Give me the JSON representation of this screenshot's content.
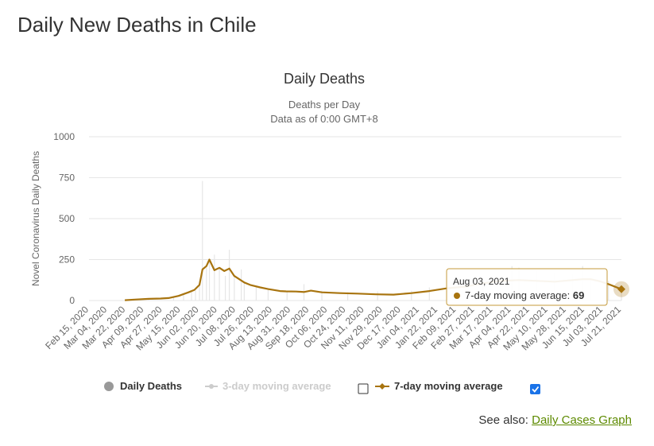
{
  "page": {
    "title": "Daily New Deaths in Chile",
    "see_also_prefix": "See also: ",
    "see_also_link": "Daily Cases Graph"
  },
  "colors": {
    "avg7": "#a8740f",
    "avg3_disabled": "#cccccc",
    "bars": "#e6e6e6",
    "grid": "#e6e6e6",
    "legend_dot": "#999999",
    "link": "#5d8a00"
  },
  "tooltip": {
    "date": "Aug 03, 2021",
    "series": "7-day moving average",
    "value": "69"
  },
  "legend": {
    "items": [
      {
        "label": "Daily Deaths",
        "checkbox": false,
        "enabled": true
      },
      {
        "label": "3-day moving average",
        "checkbox": true,
        "checked": false,
        "enabled": false
      },
      {
        "label": "7-day moving average",
        "checkbox": true,
        "checked": true,
        "enabled": true
      }
    ]
  },
  "chart_data": {
    "type": "line",
    "title": "Daily Deaths",
    "subtitle_lines": [
      "Deaths per Day",
      "Data as of 0:00 GMT+8"
    ],
    "ylabel": "Novel Coronavirus Daily Deaths",
    "ylim": [
      0,
      1000
    ],
    "yticks": [
      0,
      250,
      500,
      750,
      1000
    ],
    "x_range": [
      "2020-02-15",
      "2021-08-03"
    ],
    "xtick_labels": [
      "Feb 15, 2020",
      "Mar 04, 2020",
      "Mar 22, 2020",
      "Apr 09, 2020",
      "Apr 27, 2020",
      "May 15, 2020",
      "Jun 02, 2020",
      "Jun 20, 2020",
      "Jul 08, 2020",
      "Jul 26, 2020",
      "Aug 13, 2020",
      "Aug 31, 2020",
      "Sep 18, 2020",
      "Oct 06, 2020",
      "Oct 24, 2020",
      "Nov 11, 2020",
      "Nov 29, 2020",
      "Dec 17, 2020",
      "Jan 04, 2021",
      "Jan 22, 2021",
      "Feb 09, 2021",
      "Feb 27, 2021",
      "Mar 17, 2021",
      "Apr 04, 2021",
      "Apr 22, 2021",
      "May 10, 2021",
      "May 28, 2021",
      "Jun 15, 2021",
      "Jul 03, 2021",
      "Jul 21, 2021"
    ],
    "legend_position": "bottom",
    "grid": true,
    "series": [
      {
        "name": "Daily Deaths",
        "type": "column",
        "x": [
          "2020-03-22",
          "2020-04-15",
          "2020-05-10",
          "2020-05-20",
          "2020-05-28",
          "2020-06-01",
          "2020-06-05",
          "2020-06-08",
          "2020-06-12",
          "2020-06-15",
          "2020-06-20",
          "2020-06-25",
          "2020-07-01",
          "2020-07-05",
          "2020-07-10",
          "2020-07-17",
          "2020-07-20",
          "2020-08-01",
          "2020-08-13",
          "2020-09-01",
          "2020-09-18",
          "2020-10-06",
          "2020-11-01",
          "2020-12-01",
          "2021-01-04",
          "2021-01-22",
          "2021-02-09",
          "2021-02-27",
          "2021-03-17",
          "2021-04-04",
          "2021-04-15",
          "2021-04-22",
          "2021-05-10",
          "2021-05-28",
          "2021-06-15",
          "2021-06-25",
          "2021-07-03",
          "2021-07-21",
          "2021-08-03"
        ],
        "values": [
          2,
          8,
          20,
          45,
          55,
          60,
          120,
          730,
          200,
          250,
          280,
          200,
          150,
          310,
          150,
          190,
          110,
          90,
          75,
          55,
          100,
          60,
          50,
          55,
          60,
          80,
          95,
          110,
          130,
          150,
          210,
          200,
          180,
          170,
          160,
          210,
          140,
          120,
          50
        ]
      },
      {
        "name": "3-day moving average",
        "type": "line",
        "visible": false,
        "x": [],
        "values": []
      },
      {
        "name": "7-day moving average",
        "type": "line",
        "x": [
          "2020-03-22",
          "2020-04-01",
          "2020-04-15",
          "2020-04-27",
          "2020-05-05",
          "2020-05-15",
          "2020-05-25",
          "2020-05-31",
          "2020-06-05",
          "2020-06-08",
          "2020-06-12",
          "2020-06-15",
          "2020-06-20",
          "2020-06-25",
          "2020-06-30",
          "2020-07-05",
          "2020-07-10",
          "2020-07-15",
          "2020-07-20",
          "2020-07-26",
          "2020-08-05",
          "2020-08-13",
          "2020-08-25",
          "2020-08-31",
          "2020-09-10",
          "2020-09-18",
          "2020-09-25",
          "2020-10-06",
          "2020-10-24",
          "2020-11-11",
          "2020-11-29",
          "2020-12-17",
          "2021-01-04",
          "2021-01-22",
          "2021-02-09",
          "2021-02-27",
          "2021-03-17",
          "2021-04-04",
          "2021-04-22",
          "2021-05-10",
          "2021-05-28",
          "2021-06-15",
          "2021-06-25",
          "2021-07-03",
          "2021-07-12",
          "2021-07-21",
          "2021-08-03"
        ],
        "values": [
          2,
          6,
          10,
          12,
          15,
          28,
          50,
          65,
          95,
          190,
          210,
          250,
          185,
          200,
          180,
          195,
          150,
          130,
          110,
          95,
          80,
          70,
          58,
          56,
          55,
          52,
          60,
          50,
          45,
          42,
          38,
          36,
          45,
          58,
          75,
          85,
          105,
          120,
          125,
          120,
          115,
          125,
          130,
          130,
          118,
          100,
          69
        ]
      }
    ]
  }
}
